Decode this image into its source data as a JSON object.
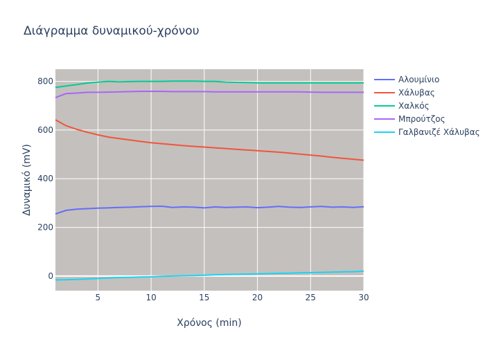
{
  "chart_data": {
    "type": "line",
    "title": "Διάγραμμα δυναμικού-χρόνου",
    "xlabel": "Χρόνος (min)",
    "ylabel": "Δυναμικό (mV)",
    "xlim": [
      1,
      30
    ],
    "ylim": [
      -60,
      850
    ],
    "xticks": [
      5,
      10,
      15,
      20,
      25,
      30
    ],
    "yticks": [
      0,
      200,
      400,
      600,
      800
    ],
    "grid": true,
    "legend_position": "right",
    "background_color": "#c4c0bd",
    "x": [
      1,
      2,
      3,
      4,
      5,
      6,
      7,
      8,
      9,
      10,
      11,
      12,
      13,
      14,
      15,
      16,
      17,
      18,
      19,
      20,
      21,
      22,
      23,
      24,
      25,
      26,
      27,
      28,
      29,
      30
    ],
    "series": [
      {
        "name": "Αλουμίνιο",
        "color": "#636efa",
        "values": [
          255,
          270,
          275,
          277,
          279,
          280,
          282,
          283,
          285,
          286,
          287,
          282,
          284,
          283,
          280,
          284,
          282,
          283,
          284,
          281,
          283,
          286,
          283,
          282,
          284,
          286,
          283,
          284,
          282,
          285
        ]
      },
      {
        "name": "Χάλυβας",
        "color": "#ef553b",
        "values": [
          642,
          618,
          603,
          591,
          580,
          571,
          565,
          559,
          553,
          548,
          544,
          540,
          536,
          533,
          530,
          527,
          524,
          521,
          518,
          515,
          512,
          509,
          505,
          501,
          497,
          493,
          488,
          484,
          480,
          476
        ]
      },
      {
        "name": "Χαλκός",
        "color": "#00cc96",
        "values": [
          775,
          781,
          787,
          793,
          797,
          800,
          798,
          799,
          800,
          800,
          800,
          801,
          801,
          801,
          800,
          800,
          797,
          796,
          795,
          794,
          794,
          794,
          794,
          794,
          794,
          794,
          794,
          794,
          794,
          794
        ]
      },
      {
        "name": "Μπρούτζος",
        "color": "#ab63fa",
        "values": [
          733,
          750,
          752,
          755,
          755,
          756,
          757,
          758,
          759,
          759,
          759,
          758,
          758,
          758,
          758,
          757,
          757,
          757,
          757,
          757,
          757,
          757,
          757,
          757,
          756,
          755,
          755,
          755,
          755,
          755
        ]
      },
      {
        "name": "Γαλβανιζέ Χάλυβας",
        "color": "#19d3f3",
        "values": [
          -16,
          -15,
          -14,
          -12,
          -10,
          -8,
          -6,
          -5,
          -4,
          -3,
          -1,
          0,
          1,
          2,
          3,
          5,
          6,
          7,
          8,
          9,
          10,
          11,
          12,
          13,
          14,
          15,
          16,
          17,
          18,
          20
        ]
      }
    ]
  }
}
